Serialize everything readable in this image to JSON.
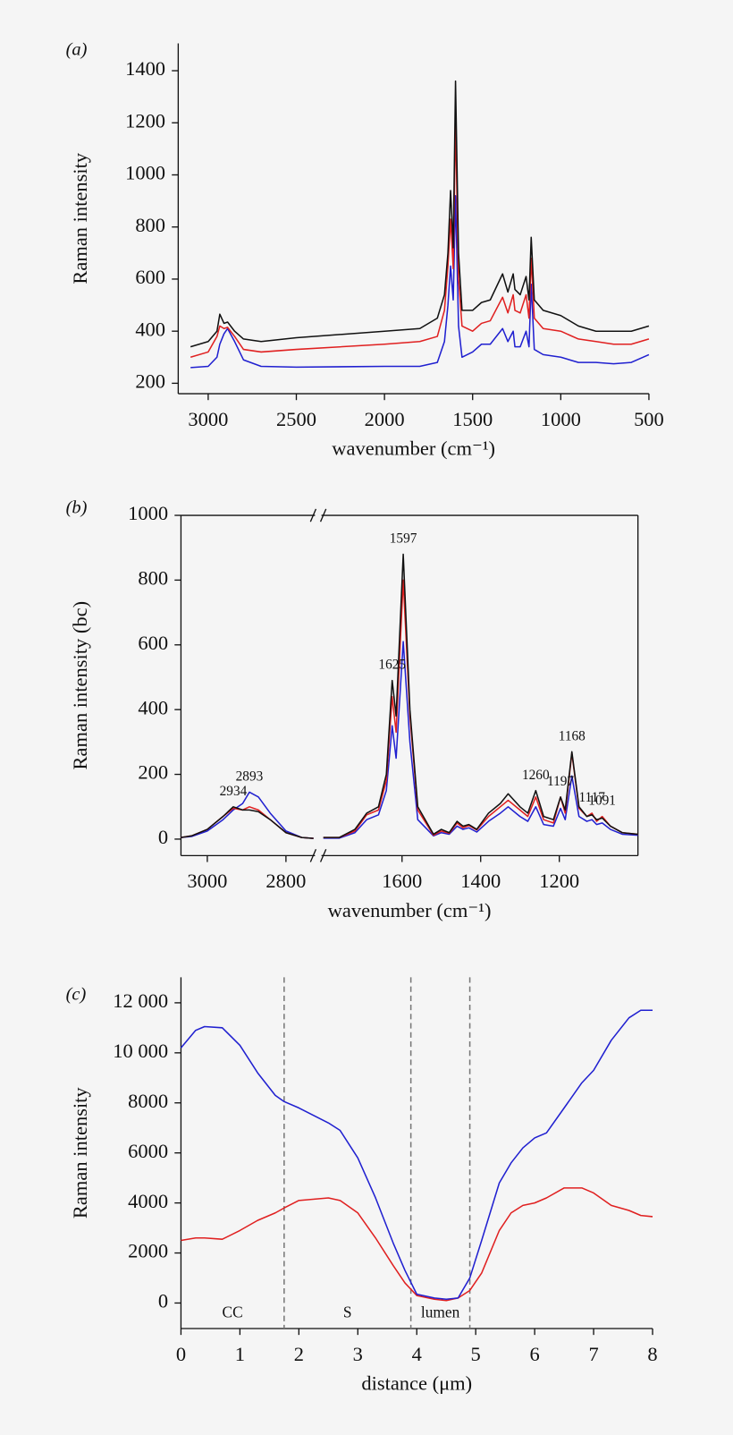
{
  "chart_data": [
    {
      "type": "line",
      "panel_label": "(a)",
      "xlabel": "wavenumber (cm⁻¹)",
      "ylabel": "Raman intensity",
      "xlim": [
        3170,
        500
      ],
      "xticks": [
        3000,
        2500,
        2000,
        1500,
        1000,
        500
      ],
      "ylim": [
        160,
        1505
      ],
      "yticks": [
        200,
        400,
        600,
        800,
        1000,
        1200,
        1400
      ],
      "x": [
        3100,
        3000,
        2950,
        2934,
        2910,
        2890,
        2850,
        2800,
        2700,
        2500,
        2000,
        1800,
        1700,
        1660,
        1640,
        1625,
        1610,
        1597,
        1580,
        1560,
        1500,
        1450,
        1400,
        1330,
        1300,
        1270,
        1260,
        1230,
        1197,
        1180,
        1168,
        1150,
        1100,
        1000,
        900,
        800,
        700,
        600,
        500
      ],
      "series": [
        {
          "color": "#111111",
          "values": [
            340,
            360,
            400,
            465,
            430,
            435,
            400,
            370,
            360,
            375,
            400,
            410,
            450,
            540,
            700,
            940,
            720,
            1360,
            700,
            480,
            480,
            510,
            520,
            620,
            550,
            620,
            560,
            540,
            610,
            520,
            760,
            520,
            480,
            460,
            420,
            400,
            400,
            400,
            420
          ]
        },
        {
          "color": "#e02020",
          "values": [
            300,
            320,
            380,
            420,
            410,
            415,
            380,
            330,
            320,
            330,
            350,
            360,
            380,
            480,
            650,
            830,
            640,
            1210,
            600,
            420,
            400,
            430,
            440,
            530,
            470,
            540,
            480,
            470,
            540,
            450,
            680,
            450,
            410,
            400,
            370,
            360,
            350,
            350,
            370
          ]
        },
        {
          "color": "#2020d0",
          "values": [
            260,
            265,
            300,
            350,
            390,
            410,
            360,
            290,
            265,
            262,
            265,
            265,
            280,
            360,
            500,
            650,
            520,
            920,
            420,
            300,
            320,
            350,
            350,
            410,
            360,
            400,
            340,
            340,
            400,
            340,
            580,
            330,
            310,
            300,
            280,
            280,
            275,
            280,
            310
          ]
        }
      ]
    },
    {
      "type": "line",
      "panel_label": "(b)",
      "xlabel": "wavenumber (cm⁻¹)",
      "ylabel": "Raman intensity (bc)",
      "frame": true,
      "x_segments": [
        {
          "xlim": [
            3067,
            2726
          ],
          "xticks": [
            3000,
            2800
          ]
        },
        {
          "xlim": [
            1805,
            1000
          ],
          "xticks": [
            1600,
            1400,
            1200
          ]
        }
      ],
      "ylim": [
        -51,
        1000
      ],
      "yticks": [
        0,
        200,
        400,
        600,
        800,
        1000
      ],
      "peaks": [
        2934,
        2893,
        1625,
        1597,
        1260,
        1197,
        1168,
        1117,
        1091
      ],
      "x": [
        3067,
        3040,
        3000,
        2960,
        2934,
        2910,
        2893,
        2870,
        2840,
        2800,
        2760,
        2730,
        1800,
        1760,
        1720,
        1690,
        1660,
        1640,
        1625,
        1615,
        1597,
        1580,
        1560,
        1520,
        1500,
        1480,
        1460,
        1445,
        1430,
        1410,
        1380,
        1350,
        1330,
        1300,
        1280,
        1260,
        1240,
        1215,
        1197,
        1185,
        1168,
        1150,
        1130,
        1117,
        1105,
        1091,
        1070,
        1040,
        1000
      ],
      "series": [
        {
          "color": "#111111",
          "values": [
            5,
            10,
            30,
            70,
            100,
            90,
            90,
            85,
            60,
            20,
            5,
            2,
            5,
            5,
            30,
            80,
            100,
            200,
            490,
            380,
            880,
            400,
            100,
            15,
            30,
            20,
            55,
            40,
            45,
            30,
            80,
            110,
            140,
            100,
            80,
            150,
            70,
            60,
            130,
            90,
            270,
            100,
            70,
            75,
            60,
            65,
            40,
            20,
            15
          ]
        },
        {
          "color": "#e02020",
          "values": [
            5,
            10,
            30,
            70,
            95,
            90,
            100,
            90,
            60,
            20,
            5,
            2,
            5,
            5,
            25,
            75,
            90,
            180,
            440,
            330,
            800,
            380,
            90,
            12,
            25,
            18,
            50,
            35,
            42,
            28,
            70,
            100,
            120,
            90,
            70,
            130,
            60,
            50,
            130,
            80,
            265,
            95,
            70,
            80,
            55,
            70,
            40,
            20,
            15
          ]
        },
        {
          "color": "#2020d0",
          "values": [
            5,
            8,
            25,
            60,
            90,
            110,
            145,
            130,
            80,
            25,
            5,
            2,
            3,
            3,
            20,
            60,
            75,
            150,
            350,
            250,
            610,
            300,
            60,
            10,
            20,
            15,
            40,
            30,
            35,
            22,
            55,
            80,
            100,
            70,
            55,
            100,
            45,
            40,
            95,
            60,
            195,
            70,
            55,
            60,
            45,
            50,
            30,
            15,
            12
          ]
        }
      ]
    },
    {
      "type": "line",
      "panel_label": "(c)",
      "xlabel": "distance (μm)",
      "ylabel": "Raman intensity",
      "xlim": [
        0,
        8
      ],
      "xticks": [
        0,
        1,
        2,
        3,
        4,
        5,
        6,
        7,
        8
      ],
      "ylim": [
        -1020,
        13020
      ],
      "yticks": [
        0,
        2000,
        4000,
        6000,
        8000,
        {
          "value": 10000,
          "label": "10 000"
        },
        {
          "value": 12000,
          "label": "12 000"
        }
      ],
      "dividers": [
        1.75,
        3.9,
        4.9
      ],
      "region_labels": [
        "CC",
        "S",
        "lumen"
      ],
      "x": [
        0,
        0.25,
        0.4,
        0.7,
        1,
        1.3,
        1.6,
        1.75,
        2,
        2.5,
        2.7,
        3,
        3.3,
        3.6,
        3.8,
        4,
        4.3,
        4.5,
        4.7,
        4.9,
        5.1,
        5.4,
        5.6,
        5.8,
        6,
        6.2,
        6.5,
        6.8,
        7,
        7.3,
        7.6,
        7.8,
        8
      ],
      "series": [
        {
          "color": "#2020d0",
          "values": [
            10200,
            10900,
            11050,
            11000,
            10300,
            9200,
            8300,
            8050,
            7800,
            7200,
            6900,
            5800,
            4200,
            2400,
            1300,
            350,
            200,
            150,
            200,
            1000,
            2500,
            4800,
            5600,
            6200,
            6600,
            6800,
            7800,
            8800,
            9300,
            10500,
            11400,
            11700,
            11700
          ]
        },
        {
          "color": "#e02020",
          "values": [
            2500,
            2600,
            2600,
            2550,
            2900,
            3300,
            3600,
            3800,
            4100,
            4200,
            4100,
            3600,
            2600,
            1500,
            800,
            300,
            150,
            100,
            200,
            500,
            1200,
            2900,
            3600,
            3900,
            4000,
            4200,
            4600,
            4600,
            4400,
            3900,
            3700,
            3500,
            3450
          ]
        }
      ]
    }
  ]
}
